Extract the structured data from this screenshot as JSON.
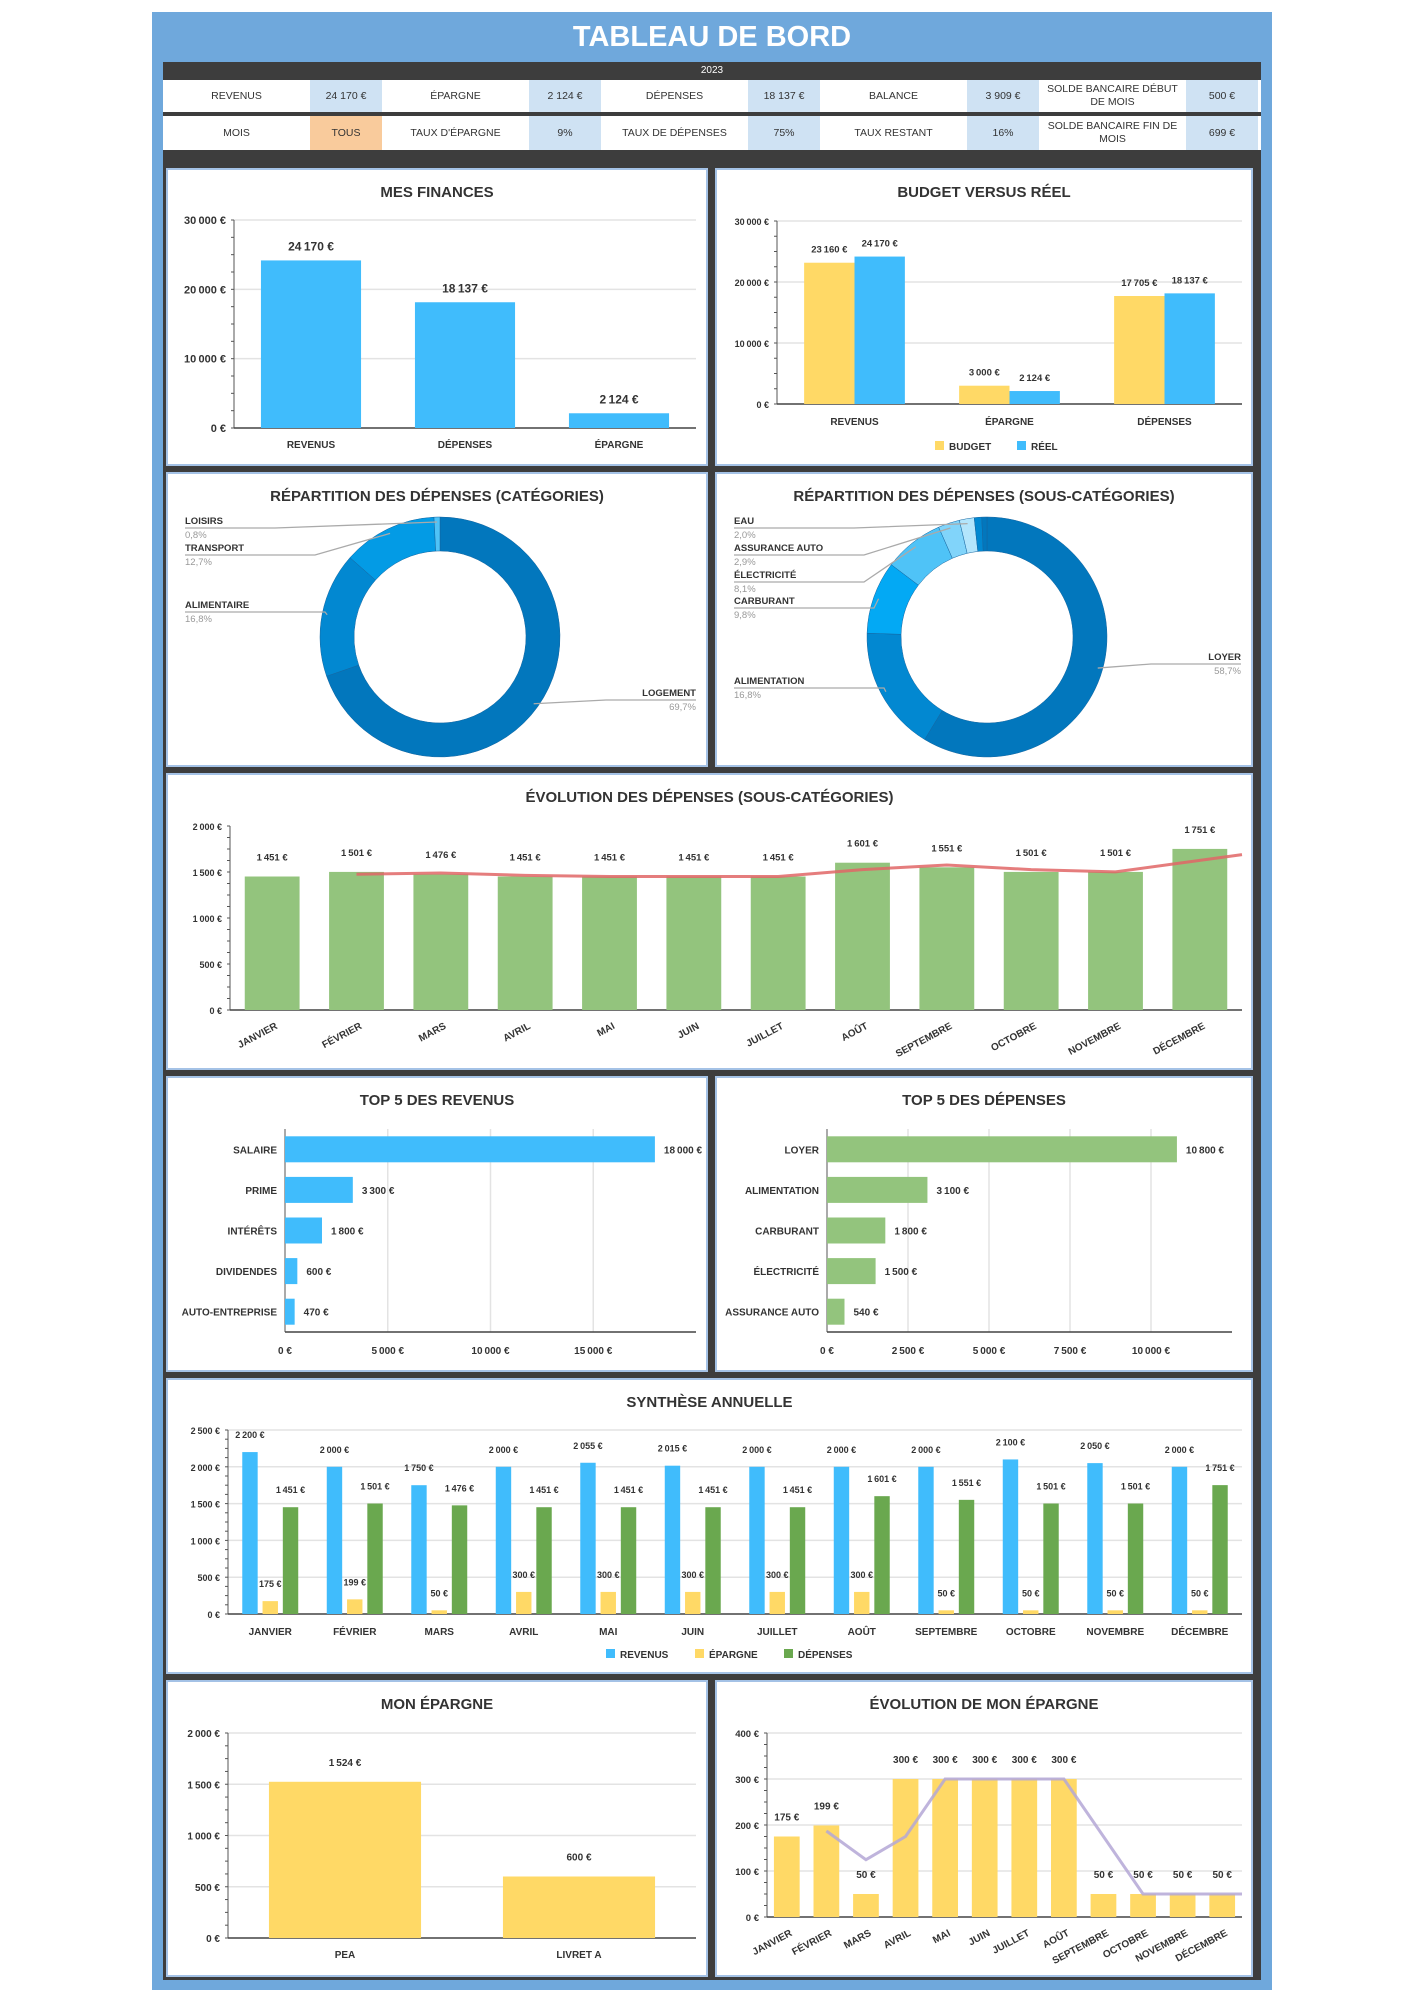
{
  "header": {
    "title": "TABLEAU DE BORD",
    "year": "2023",
    "row1": [
      {
        "label": "REVENUS",
        "value": "24 170 €"
      },
      {
        "label": "ÉPARGNE",
        "value": "2 124 €"
      },
      {
        "label": "DÉPENSES",
        "value": "18 137 €"
      },
      {
        "label": "BALANCE",
        "value": "3 909 €"
      },
      {
        "label": "SOLDE BANCAIRE DÉBUT DE MOIS",
        "value": "500 €"
      }
    ],
    "row2": [
      {
        "label": "MOIS",
        "value": "TOUS"
      },
      {
        "label": "TAUX D'ÉPARGNE",
        "value": "9%"
      },
      {
        "label": "TAUX DE DÉPENSES",
        "value": "75%"
      },
      {
        "label": "TAUX RESTANT",
        "value": "16%"
      },
      {
        "label": "SOLDE BANCAIRE FIN DE MOIS",
        "value": "699 €"
      }
    ]
  },
  "colors": {
    "frame": "#6fa8dc",
    "dark": "#3d3d3d",
    "kpi_value": "#cfe2f3",
    "selected": "#f9cb9c",
    "blue": "#40bcfc",
    "yellow": "#ffd966",
    "green_light": "#93c47d",
    "green": "#6aa84f",
    "trend_red": "#e06666",
    "trend_purple": "#b4a7d6"
  },
  "chart_data": [
    {
      "id": "finances",
      "type": "bar",
      "title": "MES FINANCES",
      "categories": [
        "REVENUS",
        "DÉPENSES",
        "ÉPARGNE"
      ],
      "series": [
        {
          "values": [
            24170,
            18137,
            2124
          ],
          "color": "#40bcfc"
        }
      ],
      "ylim": [
        0,
        30000
      ],
      "ytick": 10000,
      "grid": true
    },
    {
      "id": "budget",
      "type": "bar",
      "title": "BUDGET VERSUS RÉEL",
      "categories": [
        "REVENUS",
        "ÉPARGNE",
        "DÉPENSES"
      ],
      "series": [
        {
          "name": "BUDGET",
          "values": [
            23160,
            3000,
            17705
          ],
          "color": "#ffd966"
        },
        {
          "name": "RÉEL",
          "values": [
            24170,
            2124,
            18137
          ],
          "color": "#40bcfc"
        }
      ],
      "ylim": [
        0,
        30000
      ],
      "ytick": 10000,
      "grid": true,
      "legend": "bottom"
    },
    {
      "id": "cat",
      "type": "pie",
      "donut": true,
      "title": "RÉPARTITION DES DÉPENSES (CATÉGORIES)",
      "slices": [
        {
          "label": "LOGEMENT",
          "pct": "69,7%",
          "value": 69.7,
          "color": "#0277bd"
        },
        {
          "label": "ALIMENTAIRE",
          "pct": "16,8%",
          "value": 16.8,
          "color": "#0288d1"
        },
        {
          "label": "TRANSPORT",
          "pct": "12,7%",
          "value": 12.7,
          "color": "#039be5"
        },
        {
          "label": "LOISIRS",
          "pct": "0,8%",
          "value": 0.8,
          "color": "#4fc3f7"
        }
      ]
    },
    {
      "id": "subcat",
      "type": "pie",
      "donut": true,
      "title": "RÉPARTITION DES DÉPENSES (SOUS-CATÉGORIES)",
      "slices": [
        {
          "label": "LOYER",
          "pct": "58,7%",
          "value": 58.7,
          "color": "#0277bd"
        },
        {
          "label": "ALIMENTATION",
          "pct": "16,8%",
          "value": 16.8,
          "color": "#0288d1"
        },
        {
          "label": "CARBURANT",
          "pct": "9,8%",
          "value": 9.8,
          "color": "#03a9f4"
        },
        {
          "label": "ÉLECTRICITÉ",
          "pct": "8,1%",
          "value": 8.1,
          "color": "#4fc3f7"
        },
        {
          "label": "ASSURANCE AUTO",
          "pct": "2,9%",
          "value": 2.9,
          "color": "#81d4fa"
        },
        {
          "label": "EAU",
          "pct": "2,0%",
          "value": 2.0,
          "color": "#b3e5fc"
        },
        {
          "value": 1.0,
          "color": "#0288d1"
        },
        {
          "value": 0.7,
          "color": "#0277bd"
        }
      ]
    },
    {
      "id": "evoldep",
      "type": "bar",
      "title": "ÉVOLUTION DES DÉPENSES (SOUS-CATÉGORIES)",
      "categories": [
        "JANVIER",
        "FÉVRIER",
        "MARS",
        "AVRIL",
        "MAI",
        "JUIN",
        "JUILLET",
        "AOÛT",
        "SEPTEMBRE",
        "OCTOBRE",
        "NOVEMBRE",
        "DÉCEMBRE"
      ],
      "series": [
        {
          "values": [
            1451,
            1501,
            1476,
            1451,
            1451,
            1451,
            1451,
            1601,
            1551,
            1501,
            1501,
            1751
          ],
          "color": "#93c47d"
        }
      ],
      "ylim": [
        0,
        2000
      ],
      "ytick": 500,
      "grid": false,
      "trendline": {
        "type": "moving-average",
        "period": 2,
        "color": "#e06666"
      }
    },
    {
      "id": "toprev",
      "type": "bar",
      "orientation": "horizontal",
      "title": "TOP 5 DES REVENUS",
      "categories": [
        "SALAIRE",
        "PRIME",
        "INTÉRÊTS",
        "DIVIDENDES",
        "AUTO-ENTREPRISE"
      ],
      "values": [
        18000,
        3300,
        1800,
        600,
        470
      ],
      "color": "#40bcfc",
      "xlim": [
        0,
        20000
      ],
      "xticks": [
        0,
        5000,
        10000,
        15000
      ],
      "grid": true
    },
    {
      "id": "topdep",
      "type": "bar",
      "orientation": "horizontal",
      "title": "TOP 5 DES DÉPENSES",
      "categories": [
        "LOYER",
        "ALIMENTATION",
        "CARBURANT",
        "ÉLECTRICITÉ",
        "ASSURANCE AUTO"
      ],
      "values": [
        10800,
        3100,
        1800,
        1500,
        540
      ],
      "color": "#93c47d",
      "xlim": [
        0,
        12500
      ],
      "xticks": [
        0,
        2500,
        5000,
        7500,
        10000
      ],
      "grid": true
    },
    {
      "id": "synth",
      "type": "bar",
      "title": "SYNTHÈSE ANNUELLE",
      "categories": [
        "JANVIER",
        "FÉVRIER",
        "MARS",
        "AVRIL",
        "MAI",
        "JUIN",
        "JUILLET",
        "AOÛT",
        "SEPTEMBRE",
        "OCTOBRE",
        "NOVEMBRE",
        "DÉCEMBRE"
      ],
      "series": [
        {
          "name": "REVENUS",
          "values": [
            2200,
            2000,
            1750,
            2000,
            2055,
            2015,
            2000,
            2000,
            2000,
            2100,
            2050,
            2000
          ],
          "color": "#40bcfc"
        },
        {
          "name": "ÉPARGNE",
          "values": [
            175,
            199,
            50,
            300,
            300,
            300,
            300,
            300,
            50,
            50,
            50,
            50
          ],
          "color": "#ffd966"
        },
        {
          "name": "DÉPENSES",
          "values": [
            1451,
            1501,
            1476,
            1451,
            1451,
            1451,
            1451,
            1601,
            1551,
            1501,
            1501,
            1751
          ],
          "color": "#6aa84f"
        }
      ],
      "ylim": [
        0,
        2500
      ],
      "ytick": 500,
      "grid": true,
      "legend": "bottom"
    },
    {
      "id": "epargne",
      "type": "bar",
      "title": "MON ÉPARGNE",
      "categories": [
        "PEA",
        "LIVRET A"
      ],
      "series": [
        {
          "values": [
            1524,
            600
          ],
          "color": "#ffd966"
        }
      ],
      "ylim": [
        0,
        2000
      ],
      "ytick": 500,
      "grid": true
    },
    {
      "id": "evolep",
      "type": "bar",
      "title": "ÉVOLUTION DE MON ÉPARGNE",
      "categories": [
        "JANVIER",
        "FÉVRIER",
        "MARS",
        "AVRIL",
        "MAI",
        "JUIN",
        "JUILLET",
        "AOÛT",
        "SEPTEMBRE",
        "OCTOBRE",
        "NOVEMBRE",
        "DÉCEMBRE"
      ],
      "series": [
        {
          "values": [
            175,
            199,
            50,
            300,
            300,
            300,
            300,
            300,
            50,
            50,
            50,
            50
          ],
          "color": "#ffd966"
        }
      ],
      "ylim": [
        0,
        400
      ],
      "ytick": 100,
      "grid": true,
      "trendline": {
        "type": "moving-average",
        "period": 2,
        "color": "#b4a7d6"
      }
    }
  ]
}
